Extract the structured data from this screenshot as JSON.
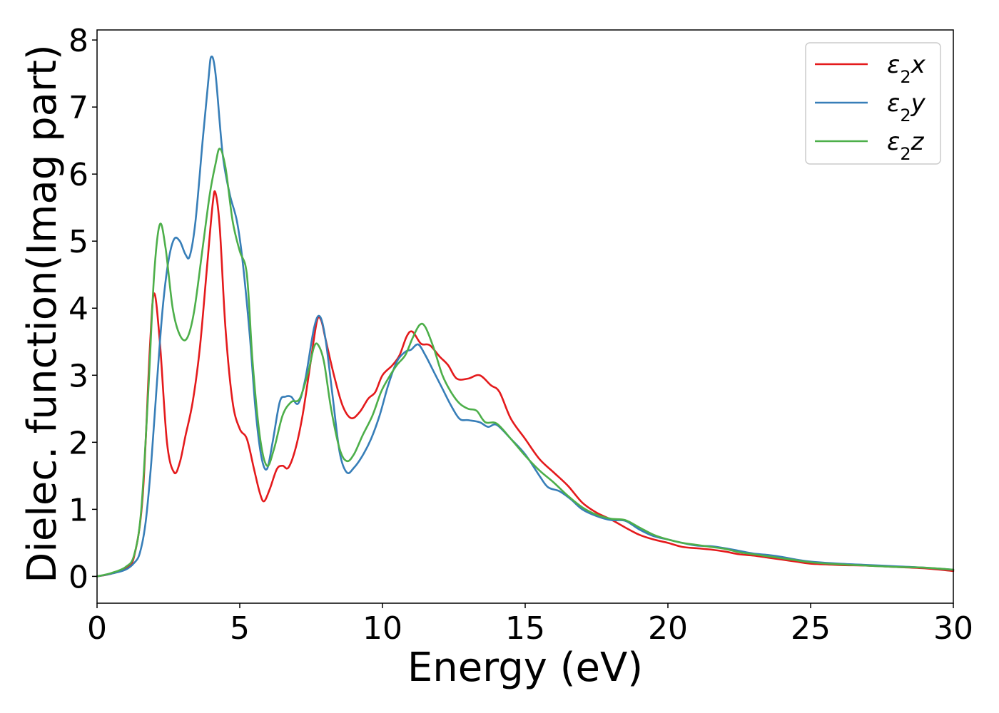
{
  "chart_data": {
    "type": "line",
    "xlabel": "Energy (eV)",
    "ylabel": "Dielec. function(Imag part)",
    "xlim": [
      0,
      30
    ],
    "ylim": [
      -0.4,
      8.15
    ],
    "xticks": [
      0,
      5,
      10,
      15,
      20,
      25,
      30
    ],
    "yticks": [
      0,
      1,
      2,
      3,
      4,
      5,
      6,
      7,
      8
    ],
    "grid": false,
    "legend_position": "top-right",
    "series": [
      {
        "name": "ε₂x",
        "legend_base": "ε",
        "legend_sub": "2",
        "legend_suffix": "x",
        "color": "#e41a1c",
        "points": [
          [
            0,
            0
          ],
          [
            0.5,
            0.04
          ],
          [
            1.0,
            0.12
          ],
          [
            1.3,
            0.3
          ],
          [
            1.6,
            1.2
          ],
          [
            1.85,
            3.4
          ],
          [
            2.0,
            4.22
          ],
          [
            2.2,
            3.5
          ],
          [
            2.45,
            2.0
          ],
          [
            2.7,
            1.55
          ],
          [
            2.9,
            1.7
          ],
          [
            3.1,
            2.1
          ],
          [
            3.35,
            2.6
          ],
          [
            3.6,
            3.4
          ],
          [
            3.85,
            4.6
          ],
          [
            4.05,
            5.55
          ],
          [
            4.15,
            5.72
          ],
          [
            4.3,
            5.2
          ],
          [
            4.5,
            3.7
          ],
          [
            4.75,
            2.6
          ],
          [
            5.0,
            2.2
          ],
          [
            5.25,
            2.05
          ],
          [
            5.5,
            1.6
          ],
          [
            5.7,
            1.25
          ],
          [
            5.85,
            1.12
          ],
          [
            6.05,
            1.3
          ],
          [
            6.3,
            1.6
          ],
          [
            6.5,
            1.65
          ],
          [
            6.7,
            1.62
          ],
          [
            6.95,
            1.9
          ],
          [
            7.2,
            2.4
          ],
          [
            7.45,
            3.1
          ],
          [
            7.7,
            3.8
          ],
          [
            7.85,
            3.82
          ],
          [
            8.0,
            3.55
          ],
          [
            8.3,
            3.0
          ],
          [
            8.6,
            2.55
          ],
          [
            8.9,
            2.36
          ],
          [
            9.2,
            2.45
          ],
          [
            9.5,
            2.65
          ],
          [
            9.75,
            2.75
          ],
          [
            10.0,
            3.0
          ],
          [
            10.35,
            3.15
          ],
          [
            10.6,
            3.3
          ],
          [
            10.85,
            3.58
          ],
          [
            11.05,
            3.65
          ],
          [
            11.35,
            3.47
          ],
          [
            11.65,
            3.45
          ],
          [
            12.0,
            3.28
          ],
          [
            12.3,
            3.15
          ],
          [
            12.6,
            2.95
          ],
          [
            13.0,
            2.95
          ],
          [
            13.4,
            3.0
          ],
          [
            13.8,
            2.85
          ],
          [
            14.1,
            2.75
          ],
          [
            14.5,
            2.35
          ],
          [
            15.0,
            2.05
          ],
          [
            15.5,
            1.75
          ],
          [
            16.0,
            1.55
          ],
          [
            16.5,
            1.35
          ],
          [
            17.0,
            1.1
          ],
          [
            17.5,
            0.95
          ],
          [
            18.0,
            0.85
          ],
          [
            18.5,
            0.73
          ],
          [
            19.0,
            0.62
          ],
          [
            19.5,
            0.55
          ],
          [
            20.0,
            0.5
          ],
          [
            20.5,
            0.44
          ],
          [
            21.0,
            0.42
          ],
          [
            21.5,
            0.4
          ],
          [
            22.0,
            0.37
          ],
          [
            22.5,
            0.33
          ],
          [
            23.0,
            0.31
          ],
          [
            23.5,
            0.28
          ],
          [
            24.0,
            0.25
          ],
          [
            24.5,
            0.22
          ],
          [
            25.0,
            0.19
          ],
          [
            26.0,
            0.17
          ],
          [
            27.0,
            0.16
          ],
          [
            28.0,
            0.14
          ],
          [
            29.0,
            0.12
          ],
          [
            30.0,
            0.08
          ]
        ]
      },
      {
        "name": "ε₂y",
        "legend_base": "ε",
        "legend_sub": "2",
        "legend_suffix": "y",
        "color": "#377eb8",
        "points": [
          [
            0,
            0
          ],
          [
            0.5,
            0.04
          ],
          [
            1.0,
            0.1
          ],
          [
            1.3,
            0.2
          ],
          [
            1.5,
            0.35
          ],
          [
            1.7,
            0.8
          ],
          [
            1.9,
            1.7
          ],
          [
            2.1,
            2.9
          ],
          [
            2.3,
            4.0
          ],
          [
            2.5,
            4.7
          ],
          [
            2.7,
            5.03
          ],
          [
            2.9,
            5.0
          ],
          [
            3.1,
            4.8
          ],
          [
            3.25,
            4.78
          ],
          [
            3.45,
            5.3
          ],
          [
            3.7,
            6.5
          ],
          [
            3.9,
            7.4
          ],
          [
            4.0,
            7.75
          ],
          [
            4.15,
            7.5
          ],
          [
            4.4,
            6.3
          ],
          [
            4.65,
            5.7
          ],
          [
            4.9,
            5.3
          ],
          [
            5.1,
            4.7
          ],
          [
            5.35,
            3.6
          ],
          [
            5.55,
            2.5
          ],
          [
            5.75,
            1.8
          ],
          [
            5.95,
            1.6
          ],
          [
            6.15,
            2.0
          ],
          [
            6.4,
            2.6
          ],
          [
            6.6,
            2.68
          ],
          [
            6.8,
            2.68
          ],
          [
            7.05,
            2.58
          ],
          [
            7.3,
            2.95
          ],
          [
            7.6,
            3.7
          ],
          [
            7.8,
            3.88
          ],
          [
            8.0,
            3.55
          ],
          [
            8.25,
            2.7
          ],
          [
            8.5,
            1.85
          ],
          [
            8.75,
            1.55
          ],
          [
            9.0,
            1.62
          ],
          [
            9.3,
            1.8
          ],
          [
            9.6,
            2.05
          ],
          [
            9.9,
            2.4
          ],
          [
            10.2,
            2.85
          ],
          [
            10.5,
            3.2
          ],
          [
            10.8,
            3.35
          ],
          [
            11.0,
            3.38
          ],
          [
            11.25,
            3.46
          ],
          [
            11.5,
            3.3
          ],
          [
            11.8,
            3.05
          ],
          [
            12.1,
            2.8
          ],
          [
            12.4,
            2.55
          ],
          [
            12.7,
            2.35
          ],
          [
            13.0,
            2.33
          ],
          [
            13.4,
            2.3
          ],
          [
            13.7,
            2.23
          ],
          [
            14.0,
            2.26
          ],
          [
            14.5,
            2.05
          ],
          [
            15.0,
            1.82
          ],
          [
            15.5,
            1.5
          ],
          [
            15.8,
            1.33
          ],
          [
            16.2,
            1.27
          ],
          [
            16.6,
            1.15
          ],
          [
            17.0,
            1.0
          ],
          [
            17.5,
            0.9
          ],
          [
            18.0,
            0.84
          ],
          [
            18.5,
            0.83
          ],
          [
            19.0,
            0.7
          ],
          [
            19.5,
            0.6
          ],
          [
            20.0,
            0.55
          ],
          [
            20.5,
            0.5
          ],
          [
            21.0,
            0.46
          ],
          [
            21.5,
            0.45
          ],
          [
            22.0,
            0.42
          ],
          [
            22.5,
            0.38
          ],
          [
            23.0,
            0.34
          ],
          [
            23.5,
            0.32
          ],
          [
            24.0,
            0.29
          ],
          [
            24.5,
            0.25
          ],
          [
            25.0,
            0.22
          ],
          [
            26.0,
            0.19
          ],
          [
            27.0,
            0.17
          ],
          [
            28.0,
            0.15
          ],
          [
            29.0,
            0.13
          ],
          [
            30.0,
            0.1
          ]
        ]
      },
      {
        "name": "ε₂z",
        "legend_base": "ε",
        "legend_sub": "2",
        "legend_suffix": "z",
        "color": "#4daf4a",
        "points": [
          [
            0,
            0
          ],
          [
            0.5,
            0.05
          ],
          [
            1.0,
            0.14
          ],
          [
            1.3,
            0.32
          ],
          [
            1.55,
            1.0
          ],
          [
            1.8,
            2.8
          ],
          [
            2.0,
            4.5
          ],
          [
            2.2,
            5.25
          ],
          [
            2.4,
            4.9
          ],
          [
            2.65,
            4.0
          ],
          [
            2.9,
            3.6
          ],
          [
            3.15,
            3.55
          ],
          [
            3.4,
            3.95
          ],
          [
            3.7,
            4.9
          ],
          [
            3.95,
            5.7
          ],
          [
            4.15,
            6.15
          ],
          [
            4.3,
            6.38
          ],
          [
            4.5,
            6.1
          ],
          [
            4.75,
            5.3
          ],
          [
            5.0,
            4.85
          ],
          [
            5.25,
            4.5
          ],
          [
            5.45,
            3.2
          ],
          [
            5.7,
            2.1
          ],
          [
            5.95,
            1.65
          ],
          [
            6.2,
            1.9
          ],
          [
            6.5,
            2.4
          ],
          [
            6.8,
            2.6
          ],
          [
            7.1,
            2.65
          ],
          [
            7.4,
            3.05
          ],
          [
            7.6,
            3.42
          ],
          [
            7.75,
            3.45
          ],
          [
            7.95,
            3.2
          ],
          [
            8.2,
            2.5
          ],
          [
            8.5,
            1.9
          ],
          [
            8.75,
            1.72
          ],
          [
            9.0,
            1.82
          ],
          [
            9.3,
            2.1
          ],
          [
            9.65,
            2.4
          ],
          [
            9.95,
            2.75
          ],
          [
            10.2,
            2.95
          ],
          [
            10.5,
            3.15
          ],
          [
            10.8,
            3.3
          ],
          [
            11.05,
            3.55
          ],
          [
            11.3,
            3.75
          ],
          [
            11.5,
            3.72
          ],
          [
            11.8,
            3.4
          ],
          [
            12.1,
            3.0
          ],
          [
            12.4,
            2.75
          ],
          [
            12.7,
            2.58
          ],
          [
            13.0,
            2.5
          ],
          [
            13.3,
            2.47
          ],
          [
            13.6,
            2.3
          ],
          [
            14.0,
            2.28
          ],
          [
            14.5,
            2.05
          ],
          [
            15.0,
            1.8
          ],
          [
            15.5,
            1.58
          ],
          [
            16.0,
            1.4
          ],
          [
            16.5,
            1.2
          ],
          [
            17.0,
            1.03
          ],
          [
            17.5,
            0.92
          ],
          [
            18.0,
            0.86
          ],
          [
            18.5,
            0.84
          ],
          [
            19.0,
            0.73
          ],
          [
            19.5,
            0.62
          ],
          [
            20.0,
            0.55
          ],
          [
            20.5,
            0.5
          ],
          [
            21.0,
            0.47
          ],
          [
            21.5,
            0.44
          ],
          [
            22.0,
            0.41
          ],
          [
            22.5,
            0.36
          ],
          [
            23.0,
            0.33
          ],
          [
            23.5,
            0.3
          ],
          [
            24.0,
            0.27
          ],
          [
            24.5,
            0.24
          ],
          [
            25.0,
            0.21
          ],
          [
            26.0,
            0.18
          ],
          [
            27.0,
            0.16
          ],
          [
            28.0,
            0.14
          ],
          [
            29.0,
            0.13
          ],
          [
            30.0,
            0.1
          ]
        ]
      }
    ]
  }
}
